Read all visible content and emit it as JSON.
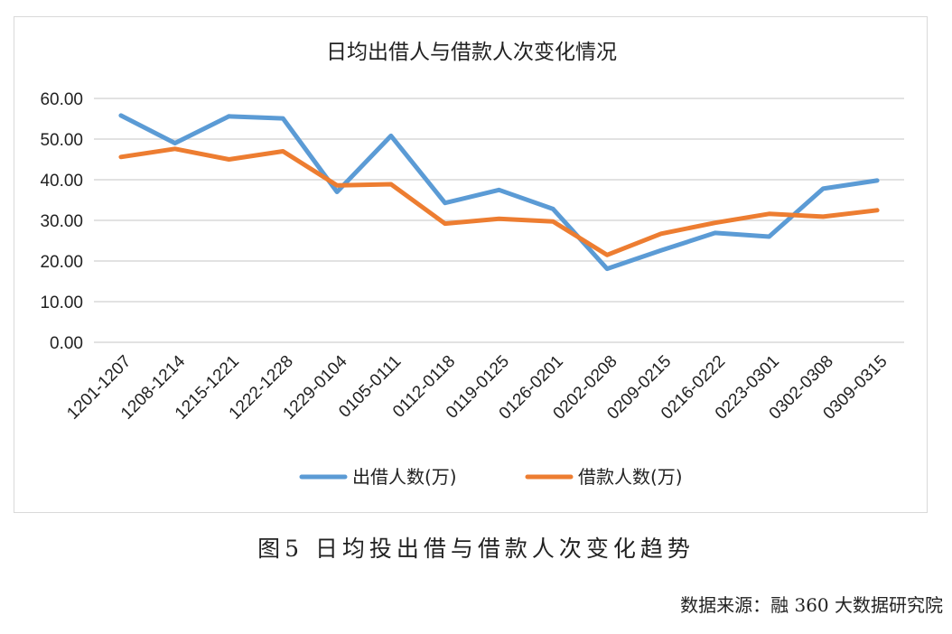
{
  "chart_data": {
    "type": "line",
    "title": "日均出借人与借款人次变化情况",
    "categories": [
      "1201-1207",
      "1208-1214",
      "1215-1221",
      "1222-1228",
      "1229-0104",
      "0105-0111",
      "0112-0118",
      "0119-0125",
      "0126-0201",
      "0202-0208",
      "0209-0215",
      "0216-0222",
      "0223-0301",
      "0302-0308",
      "0309-0315"
    ],
    "series": [
      {
        "name": "出借人数(万)",
        "color": "#5b9bd5",
        "values": [
          55.8,
          49.0,
          55.6,
          55.1,
          37.0,
          50.8,
          34.3,
          37.5,
          32.8,
          18.1,
          22.6,
          26.9,
          26.0,
          37.8,
          39.8
        ]
      },
      {
        "name": "借款人数(万)",
        "color": "#ed7d31",
        "values": [
          45.6,
          47.6,
          45.0,
          47.0,
          38.6,
          38.9,
          29.2,
          30.4,
          29.7,
          21.5,
          26.7,
          29.4,
          31.6,
          30.9,
          32.5
        ]
      }
    ],
    "yticks": [
      "0.00",
      "10.00",
      "20.00",
      "30.00",
      "40.00",
      "50.00",
      "60.00"
    ],
    "ylim": [
      0,
      60
    ],
    "grid": true,
    "legend_position": "bottom"
  },
  "caption": "图5 日均投出借与借款人次变化趋势",
  "source": "数据来源：融 360 大数据研究院"
}
